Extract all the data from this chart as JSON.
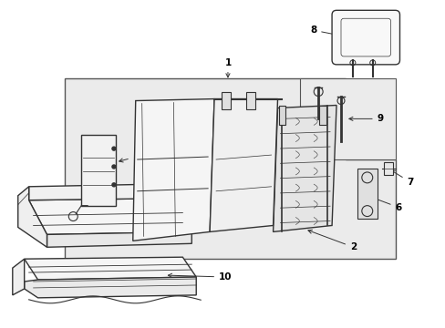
{
  "background_color": "#ffffff",
  "fig_width": 4.89,
  "fig_height": 3.6,
  "dpi": 100,
  "line_color": "#333333",
  "light_gray": "#e8e8e8",
  "mid_gray": "#cccccc",
  "dark_line": "#222222"
}
